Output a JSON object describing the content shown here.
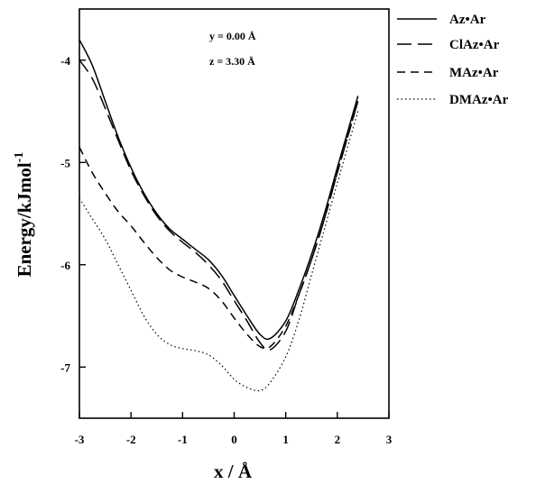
{
  "chart_data": {
    "type": "line",
    "title": "",
    "xlabel": "x / Å",
    "ylabel_main": "Energy/kJmol",
    "ylabel_sup": "-1",
    "xlim": [
      -3,
      3
    ],
    "ylim": [
      -7.5,
      -3.5
    ],
    "x_ticks": [
      -3,
      -2,
      -1,
      0,
      1,
      2,
      3
    ],
    "y_ticks": [
      -4,
      -5,
      -6,
      -7
    ],
    "annotations": [
      "y = 0.00 Å",
      "z = 3.30 Å"
    ],
    "legend_position": "right",
    "grid": false,
    "series": [
      {
        "name": "Az•Ar",
        "dash": "solid",
        "points": [
          [
            -3,
            -3.8
          ],
          [
            -2.75,
            -4.05
          ],
          [
            -2.5,
            -4.4
          ],
          [
            -2.25,
            -4.75
          ],
          [
            -2,
            -5.05
          ],
          [
            -1.75,
            -5.3
          ],
          [
            -1.5,
            -5.5
          ],
          [
            -1.25,
            -5.65
          ],
          [
            -1,
            -5.75
          ],
          [
            -0.75,
            -5.85
          ],
          [
            -0.5,
            -5.95
          ],
          [
            -0.25,
            -6.1
          ],
          [
            0,
            -6.3
          ],
          [
            0.25,
            -6.5
          ],
          [
            0.5,
            -6.68
          ],
          [
            0.7,
            -6.72
          ],
          [
            1,
            -6.55
          ],
          [
            1.25,
            -6.25
          ],
          [
            1.5,
            -5.9
          ],
          [
            1.75,
            -5.5
          ],
          [
            2,
            -5.05
          ],
          [
            2.2,
            -4.7
          ],
          [
            2.4,
            -4.35
          ]
        ]
      },
      {
        "name": "ClAz•Ar",
        "dash": "longdash",
        "points": [
          [
            -3,
            -4
          ],
          [
            -2.75,
            -4.18
          ],
          [
            -2.5,
            -4.47
          ],
          [
            -2.25,
            -4.78
          ],
          [
            -2,
            -5.08
          ],
          [
            -1.75,
            -5.32
          ],
          [
            -1.5,
            -5.52
          ],
          [
            -1.25,
            -5.67
          ],
          [
            -1,
            -5.78
          ],
          [
            -0.75,
            -5.88
          ],
          [
            -0.5,
            -6
          ],
          [
            -0.25,
            -6.15
          ],
          [
            0,
            -6.35
          ],
          [
            0.25,
            -6.55
          ],
          [
            0.5,
            -6.76
          ],
          [
            0.7,
            -6.83
          ],
          [
            1,
            -6.65
          ],
          [
            1.25,
            -6.3
          ],
          [
            1.5,
            -5.95
          ],
          [
            1.75,
            -5.55
          ],
          [
            2,
            -5.1
          ],
          [
            2.2,
            -4.75
          ],
          [
            2.4,
            -4.4
          ]
        ]
      },
      {
        "name": "MAz•Ar",
        "dash": "dash",
        "points": [
          [
            -3,
            -4.85
          ],
          [
            -2.75,
            -5.1
          ],
          [
            -2.5,
            -5.3
          ],
          [
            -2.25,
            -5.48
          ],
          [
            -2,
            -5.62
          ],
          [
            -1.75,
            -5.78
          ],
          [
            -1.5,
            -5.93
          ],
          [
            -1.25,
            -6.05
          ],
          [
            -1,
            -6.12
          ],
          [
            -0.75,
            -6.17
          ],
          [
            -0.5,
            -6.23
          ],
          [
            -0.25,
            -6.35
          ],
          [
            0,
            -6.52
          ],
          [
            0.25,
            -6.68
          ],
          [
            0.5,
            -6.8
          ],
          [
            0.7,
            -6.8
          ],
          [
            1,
            -6.6
          ],
          [
            1.25,
            -6.3
          ],
          [
            1.5,
            -5.95
          ],
          [
            1.75,
            -5.55
          ],
          [
            2,
            -5.1
          ],
          [
            2.2,
            -4.75
          ],
          [
            2.4,
            -4.4
          ]
        ]
      },
      {
        "name": "DMAz•Ar",
        "dash": "dotted",
        "points": [
          [
            -3,
            -5.35
          ],
          [
            -2.75,
            -5.55
          ],
          [
            -2.5,
            -5.75
          ],
          [
            -2.25,
            -6
          ],
          [
            -2,
            -6.25
          ],
          [
            -1.75,
            -6.5
          ],
          [
            -1.5,
            -6.68
          ],
          [
            -1.25,
            -6.78
          ],
          [
            -1,
            -6.82
          ],
          [
            -0.75,
            -6.84
          ],
          [
            -0.5,
            -6.88
          ],
          [
            -0.25,
            -6.98
          ],
          [
            0,
            -7.12
          ],
          [
            0.25,
            -7.2
          ],
          [
            0.5,
            -7.23
          ],
          [
            0.7,
            -7.15
          ],
          [
            1,
            -6.9
          ],
          [
            1.25,
            -6.55
          ],
          [
            1.5,
            -6.1
          ],
          [
            1.75,
            -5.65
          ],
          [
            2,
            -5.2
          ],
          [
            2.2,
            -4.85
          ],
          [
            2.4,
            -4.5
          ]
        ]
      }
    ]
  }
}
